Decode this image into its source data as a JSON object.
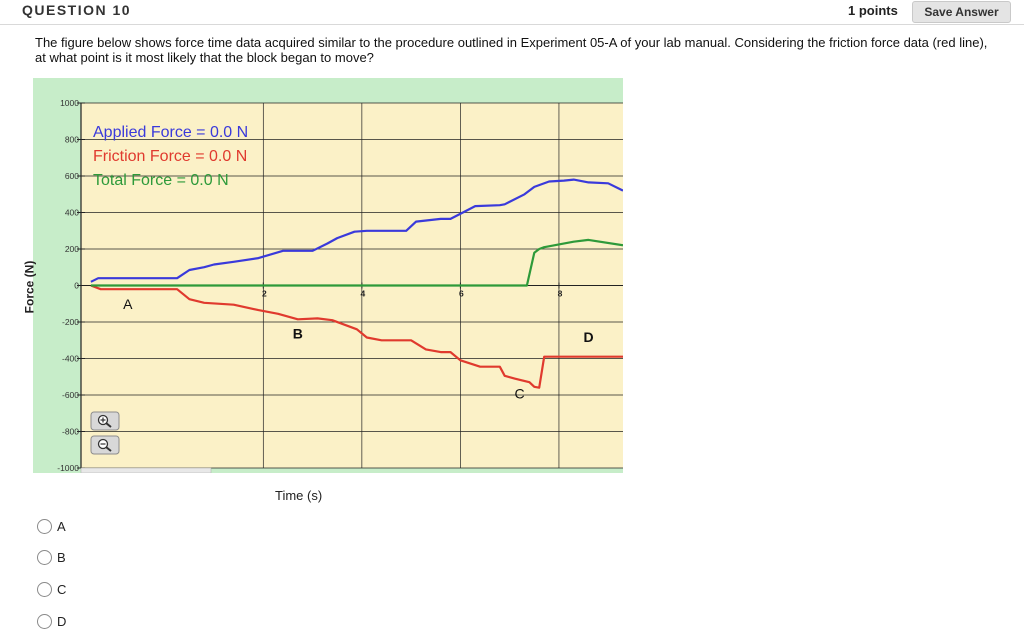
{
  "question": {
    "title": "QUESTION 10",
    "points": "1 points",
    "save_label": "Save Answer",
    "text": "The figure below shows force time data acquired similar to the procedure outlined in Experiment 05-A of your lab manual. Considering the friction force data (red line), at what point is it most likely that the block began to move?"
  },
  "chart_data": {
    "type": "line",
    "xlabel": "Time (s)",
    "ylabel": "Force (N)",
    "xlim": [
      -1.7,
      9.3
    ],
    "ylim": [
      -1000,
      1000
    ],
    "xticks": [
      2,
      4,
      6,
      8
    ],
    "yticks": [
      1000,
      800,
      600,
      400,
      200,
      0,
      -200,
      -400,
      -600,
      -800,
      -1000
    ],
    "legend": [
      {
        "label": "Applied Force = 0.0 N",
        "color": "#3a3adb"
      },
      {
        "label": "Friction Force = 0.0 N",
        "color": "#e03a2e"
      },
      {
        "label": "Total Force = 0.0 N",
        "color": "#2e9a3a"
      }
    ],
    "series": [
      {
        "name": "Applied Force",
        "color": "#3a3adb",
        "x": [
          -1.5,
          -1.35,
          0.25,
          0.5,
          0.8,
          1.0,
          1.4,
          1.9,
          2.4,
          2.7,
          3.0,
          3.3,
          3.5,
          3.85,
          4.1,
          4.4,
          4.9,
          5.1,
          5.6,
          5.8,
          6.05,
          6.3,
          6.8,
          6.9,
          7.3,
          7.5,
          7.8,
          8.1,
          8.3,
          8.6,
          9.0,
          9.3
        ],
        "y": [
          20,
          40,
          40,
          85,
          100,
          115,
          130,
          150,
          190,
          190,
          190,
          230,
          260,
          295,
          300,
          300,
          300,
          350,
          365,
          365,
          400,
          435,
          440,
          445,
          500,
          540,
          570,
          575,
          580,
          565,
          560,
          520
        ]
      },
      {
        "name": "Friction Force",
        "color": "#e03a2e",
        "x": [
          -1.5,
          -1.3,
          0.25,
          0.5,
          0.8,
          1.4,
          1.9,
          2.3,
          2.7,
          3.1,
          3.4,
          3.9,
          4.1,
          4.4,
          5.0,
          5.3,
          5.6,
          5.8,
          6.0,
          6.4,
          6.8,
          6.9,
          7.1,
          7.4,
          7.5,
          7.6,
          7.7,
          9.3
        ],
        "y": [
          0,
          -20,
          -20,
          -75,
          -95,
          -105,
          -135,
          -155,
          -185,
          -180,
          -190,
          -240,
          -285,
          -300,
          -300,
          -350,
          -365,
          -365,
          -410,
          -445,
          -445,
          -495,
          -510,
          -530,
          -555,
          -560,
          -390,
          -390
        ]
      },
      {
        "name": "Total Force",
        "color": "#2e9a3a",
        "x": [
          -1.5,
          7.35,
          7.5,
          7.6,
          7.7,
          8.0,
          8.3,
          8.6,
          9.3
        ],
        "y": [
          0,
          0,
          180,
          200,
          210,
          225,
          240,
          250,
          220
        ]
      }
    ],
    "annotations": [
      {
        "label": "A",
        "x": -0.75,
        "y": -130
      },
      {
        "label": "B",
        "x": 2.7,
        "y": -290
      },
      {
        "label": "C",
        "x": 7.2,
        "y": -620
      },
      {
        "label": "D",
        "x": 8.6,
        "y": -310
      }
    ]
  },
  "answers": {
    "options": [
      {
        "label": "A"
      },
      {
        "label": "B"
      },
      {
        "label": "C"
      },
      {
        "label": "D"
      }
    ]
  },
  "icons": [
    "zoom-in-icon",
    "zoom-out-icon"
  ]
}
